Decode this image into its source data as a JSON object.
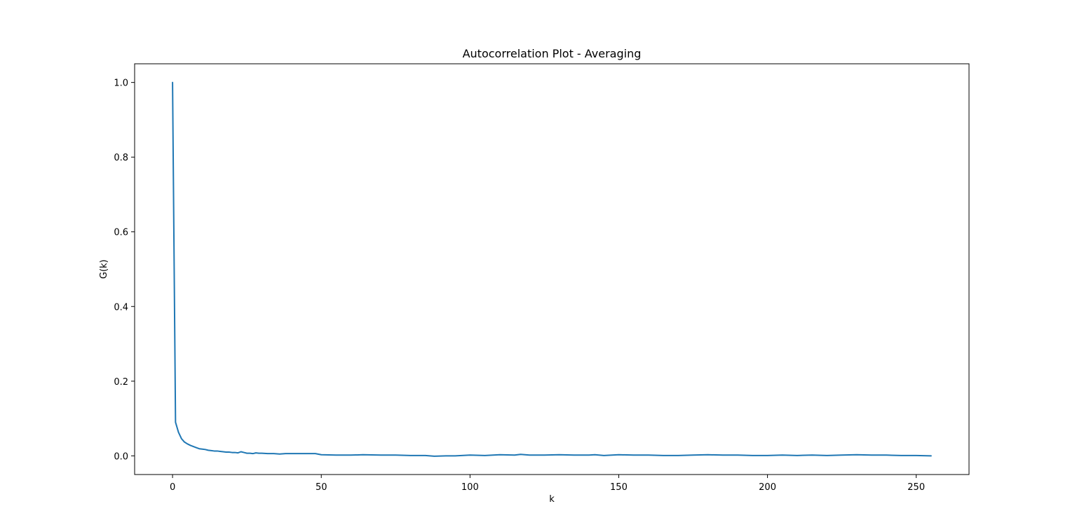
{
  "chart_data": {
    "type": "line",
    "title": "Autocorrelation Plot - Averaging",
    "xlabel": "k",
    "ylabel": "G(k)",
    "xlim": [
      -12.75,
      267.75
    ],
    "ylim": [
      -0.05,
      1.05
    ],
    "xticks": [
      0,
      50,
      100,
      150,
      200,
      250
    ],
    "xtick_labels": [
      "0",
      "50",
      "100",
      "150",
      "200",
      "250"
    ],
    "yticks": [
      0.0,
      0.2,
      0.4,
      0.6,
      0.8,
      1.0
    ],
    "ytick_labels": [
      "0.0",
      "0.2",
      "0.4",
      "0.6",
      "0.8",
      "1.0"
    ],
    "grid": false,
    "legend": "none",
    "series_color": "#1f77b4",
    "series": [
      {
        "x": [
          0,
          1,
          2,
          3,
          4,
          5,
          6,
          7,
          8,
          9,
          10,
          11,
          12,
          13,
          14,
          15,
          16,
          17,
          18,
          19,
          20,
          21,
          22,
          23,
          24,
          25,
          26,
          27,
          28,
          29,
          30,
          32,
          34,
          36,
          38,
          40,
          42,
          44,
          46,
          48,
          50,
          55,
          60,
          64,
          70,
          75,
          80,
          85,
          88,
          92,
          95,
          100,
          105,
          110,
          115,
          117,
          120,
          125,
          130,
          135,
          140,
          142,
          145,
          150,
          155,
          160,
          165,
          170,
          175,
          180,
          185,
          190,
          195,
          200,
          205,
          210,
          215,
          220,
          225,
          230,
          235,
          240,
          245,
          250,
          255
        ],
        "y": [
          1.0,
          0.09,
          0.063,
          0.046,
          0.037,
          0.032,
          0.028,
          0.025,
          0.022,
          0.019,
          0.018,
          0.017,
          0.015,
          0.014,
          0.013,
          0.013,
          0.012,
          0.011,
          0.01,
          0.01,
          0.009,
          0.009,
          0.008,
          0.011,
          0.009,
          0.007,
          0.007,
          0.006,
          0.008,
          0.007,
          0.007,
          0.006,
          0.006,
          0.005,
          0.006,
          0.006,
          0.006,
          0.006,
          0.006,
          0.006,
          0.003,
          0.002,
          0.002,
          0.003,
          0.002,
          0.002,
          0.001,
          0.001,
          -0.001,
          0.0,
          0.0,
          0.002,
          0.001,
          0.003,
          0.002,
          0.004,
          0.002,
          0.002,
          0.003,
          0.002,
          0.002,
          0.003,
          0.001,
          0.003,
          0.002,
          0.002,
          0.001,
          0.001,
          0.002,
          0.003,
          0.002,
          0.002,
          0.001,
          0.001,
          0.002,
          0.001,
          0.002,
          0.001,
          0.002,
          0.003,
          0.002,
          0.002,
          0.001,
          0.001,
          0.0
        ]
      }
    ]
  }
}
